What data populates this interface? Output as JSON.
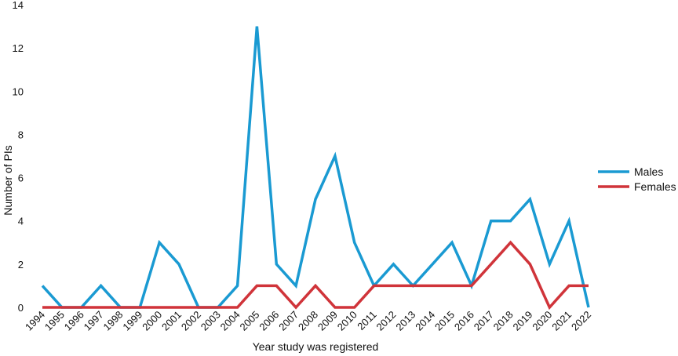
{
  "chart_data": {
    "type": "line",
    "title": "",
    "xlabel": "Year study was registered",
    "ylabel": "Number of PIs",
    "categories": [
      "1994",
      "1995",
      "1996",
      "1997",
      "1998",
      "1999",
      "2000",
      "2001",
      "2002",
      "2003",
      "2004",
      "2005",
      "2006",
      "2007",
      "2008",
      "2009",
      "2010",
      "2011",
      "2012",
      "2013",
      "2014",
      "2015",
      "2016",
      "2017",
      "2018",
      "2019",
      "2020",
      "2021",
      "2022"
    ],
    "ylim": [
      0,
      14
    ],
    "yticks": [
      0,
      2,
      4,
      6,
      8,
      10,
      12,
      14
    ],
    "grid": false,
    "legend_position": "right",
    "series": [
      {
        "name": "Males",
        "color": "#1a9ad2",
        "values": [
          1,
          0,
          0,
          1,
          0,
          0,
          3,
          2,
          0,
          0,
          1,
          13,
          2,
          1,
          5,
          7,
          3,
          1,
          2,
          1,
          2,
          3,
          1,
          4,
          4,
          5,
          2,
          4,
          0
        ]
      },
      {
        "name": "Females",
        "color": "#d0343a",
        "values": [
          0,
          0,
          0,
          0,
          0,
          0,
          0,
          0,
          0,
          0,
          0,
          1,
          1,
          0,
          1,
          0,
          0,
          1,
          1,
          1,
          1,
          1,
          1,
          2,
          3,
          2,
          0,
          1,
          1
        ]
      }
    ]
  }
}
